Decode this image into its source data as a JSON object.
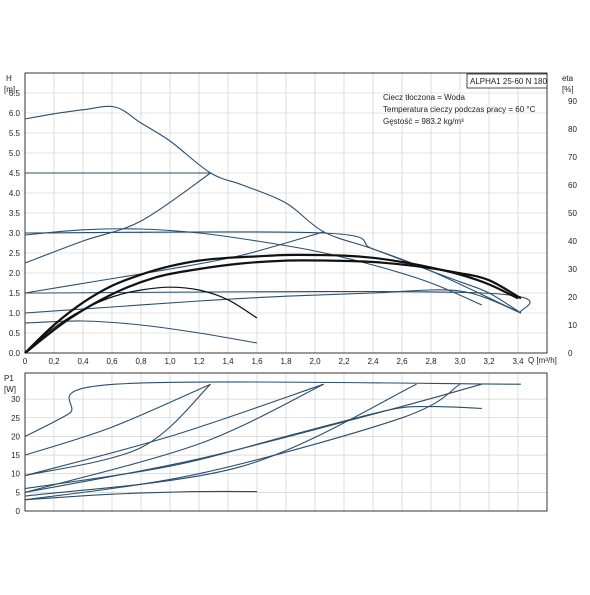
{
  "model_box": "ALPHA1 25-60 N 180",
  "info_lines": [
    "Ciecz tłoczona = Woda",
    "Temperatura cieczy podczas pracy = 60 °C",
    "Gęstość = 983.2 kg/m³"
  ],
  "chart_data": [
    {
      "type": "line",
      "title": "",
      "y_label_symbol": "H",
      "y_label_unit": "[m]",
      "y2_label_symbol": "eta",
      "y2_label_unit": "[%]",
      "x_label": "Q [m³/h]",
      "xlim": [
        0,
        3.6
      ],
      "ylim": [
        0,
        7
      ],
      "y2lim": [
        0,
        100
      ],
      "x_ticks": [
        "0",
        "0,2",
        "0,4",
        "0,6",
        "0,8",
        "1,0",
        "1,2",
        "1,4",
        "1,6",
        "1,8",
        "2,0",
        "2,2",
        "2,4",
        "2,6",
        "2,8",
        "3,0",
        "3,2",
        "3,4"
      ],
      "y_ticks": [
        "0.0",
        "0.5",
        "1.0",
        "1.5",
        "2.0",
        "2.5",
        "3.0",
        "3.5",
        "4.0",
        "4.5",
        "5.0",
        "5.5",
        "6.0",
        "6.5"
      ],
      "y2_ticks": [
        "0",
        "10",
        "20",
        "30",
        "40",
        "50",
        "60",
        "70",
        "80",
        "90"
      ],
      "grid": true,
      "series": [
        {
          "kind": "head",
          "points": [
            [
              0,
              5.85
            ],
            [
              0.2,
              5.98
            ],
            [
              0.4,
              6.08
            ],
            [
              0.62,
              6.15
            ],
            [
              0.8,
              5.75
            ],
            [
              1.0,
              5.3
            ],
            [
              1.28,
              4.5
            ],
            [
              1.5,
              4.2
            ],
            [
              1.8,
              3.75
            ],
            [
              2.06,
              3.03
            ],
            [
              2.4,
              2.6
            ],
            [
              2.8,
              2.05
            ],
            [
              3.0,
              1.78
            ],
            [
              3.2,
              1.5
            ],
            [
              3.42,
              1.0
            ]
          ]
        },
        {
          "kind": "head",
          "points": [
            [
              0,
              4.5
            ],
            [
              1.28,
              4.5
            ]
          ]
        },
        {
          "kind": "head",
          "points": [
            [
              0,
              3.0
            ],
            [
              2.06,
              3.0
            ],
            [
              2.4,
              2.6
            ],
            [
              2.8,
              2.05
            ],
            [
              3.42,
              1.0
            ]
          ]
        },
        {
          "kind": "head",
          "points": [
            [
              0,
              1.5
            ],
            [
              3.15,
              1.5
            ],
            [
              3.42,
              1.0
            ]
          ]
        },
        {
          "kind": "head",
          "points": [
            [
              0,
              2.25
            ],
            [
              0.4,
              2.8
            ],
            [
              0.8,
              3.3
            ],
            [
              1.28,
              4.5
            ]
          ]
        },
        {
          "kind": "head",
          "points": [
            [
              0,
              1.5
            ],
            [
              0.5,
              1.8
            ],
            [
              1.0,
              2.1
            ],
            [
              1.5,
              2.45
            ],
            [
              2.06,
              3.03
            ]
          ]
        },
        {
          "kind": "head",
          "points": [
            [
              0,
              1.0
            ],
            [
              0.6,
              1.15
            ],
            [
              1.2,
              1.3
            ],
            [
              1.8,
              1.42
            ],
            [
              2.4,
              1.5
            ],
            [
              3.0,
              1.55
            ],
            [
              3.42,
              1.0
            ]
          ]
        },
        {
          "kind": "head",
          "points": [
            [
              0,
              2.95
            ],
            [
              0.4,
              3.08
            ],
            [
              0.8,
              3.1
            ],
            [
              1.2,
              3.0
            ],
            [
              1.6,
              2.8
            ],
            [
              2.0,
              2.55
            ],
            [
              2.4,
              2.2
            ],
            [
              2.8,
              1.75
            ],
            [
              3.15,
              1.2
            ]
          ]
        },
        {
          "kind": "head",
          "points": [
            [
              0,
              0.75
            ],
            [
              0.4,
              0.8
            ],
            [
              0.8,
              0.7
            ],
            [
              1.2,
              0.5
            ],
            [
              1.6,
              0.25
            ]
          ]
        },
        {
          "kind": "efficiency",
          "bold": true,
          "points": [
            [
              0,
              0
            ],
            [
              0.2,
              10
            ],
            [
              0.4,
              18
            ],
            [
              0.6,
              24
            ],
            [
              0.8,
              28
            ],
            [
              1.0,
              31
            ],
            [
              1.2,
              33
            ],
            [
              1.4,
              34
            ],
            [
              1.6,
              34.5
            ],
            [
              1.8,
              35
            ],
            [
              2.0,
              35
            ],
            [
              2.2,
              34.8
            ],
            [
              2.4,
              34
            ],
            [
              2.6,
              32.5
            ],
            [
              2.8,
              30.5
            ],
            [
              3.0,
              28
            ],
            [
              3.2,
              24.5
            ],
            [
              3.4,
              19.5
            ]
          ]
        },
        {
          "kind": "efficiency",
          "bold": true,
          "points": [
            [
              0,
              0
            ],
            [
              0.3,
              12
            ],
            [
              0.6,
              21
            ],
            [
              0.9,
              27
            ],
            [
              1.2,
              30
            ],
            [
              1.5,
              32
            ],
            [
              1.8,
              33
            ],
            [
              2.1,
              33
            ],
            [
              2.4,
              32.5
            ],
            [
              2.7,
              31
            ],
            [
              3.0,
              28.5
            ],
            [
              3.2,
              26
            ],
            [
              3.42,
              19.5
            ]
          ]
        },
        {
          "kind": "efficiency",
          "bold": false,
          "points": [
            [
              0,
              0
            ],
            [
              0.2,
              9
            ],
            [
              0.4,
              15.5
            ],
            [
              0.6,
              20
            ],
            [
              0.8,
              22.5
            ],
            [
              1.0,
              23.5
            ],
            [
              1.2,
              22.5
            ],
            [
              1.4,
              19
            ],
            [
              1.6,
              12.5
            ]
          ]
        }
      ]
    },
    {
      "type": "line",
      "title": "",
      "y_label_symbol": "P1",
      "y_label_unit": "[W]",
      "xlim": [
        0,
        3.6
      ],
      "ylim": [
        0,
        37
      ],
      "y_ticks": [
        "0",
        "5",
        "10",
        "15",
        "20",
        "25",
        "30"
      ],
      "grid": true,
      "series": [
        {
          "points": [
            [
              0,
              20
            ],
            [
              0.3,
              26
            ],
            [
              0.62,
              34
            ],
            [
              3.42,
              34
            ]
          ]
        },
        {
          "points": [
            [
              0,
              15
            ],
            [
              0.6,
              22.5
            ],
            [
              1.28,
              34
            ]
          ]
        },
        {
          "points": [
            [
              0,
              9.5
            ],
            [
              1.0,
              20
            ],
            [
              2.06,
              34
            ]
          ]
        },
        {
          "points": [
            [
              0,
              5
            ],
            [
              1.2,
              14
            ],
            [
              2.5,
              27
            ],
            [
              3.15,
              34
            ]
          ]
        },
        {
          "points": [
            [
              0,
              9.5
            ],
            [
              0.8,
              17
            ],
            [
              1.28,
              34
            ]
          ]
        },
        {
          "points": [
            [
              0,
              5
            ],
            [
              1.2,
              18
            ],
            [
              2.06,
              34
            ]
          ]
        },
        {
          "points": [
            [
              0,
              4
            ],
            [
              1.5,
              12
            ],
            [
              2.7,
              34
            ]
          ]
        },
        {
          "points": [
            [
              0,
              3
            ],
            [
              1.2,
              10
            ],
            [
              2.6,
              25
            ],
            [
              3.0,
              34
            ]
          ]
        },
        {
          "points": [
            [
              0,
              6
            ],
            [
              1.0,
              12
            ],
            [
              1.8,
              20
            ],
            [
              2.5,
              27
            ],
            [
              2.8,
              28
            ],
            [
              3.15,
              27.5
            ]
          ]
        },
        {
          "points": [
            [
              0,
              3
            ],
            [
              0.6,
              4.5
            ],
            [
              1.2,
              5.2
            ],
            [
              1.6,
              5.2
            ]
          ]
        }
      ]
    }
  ]
}
